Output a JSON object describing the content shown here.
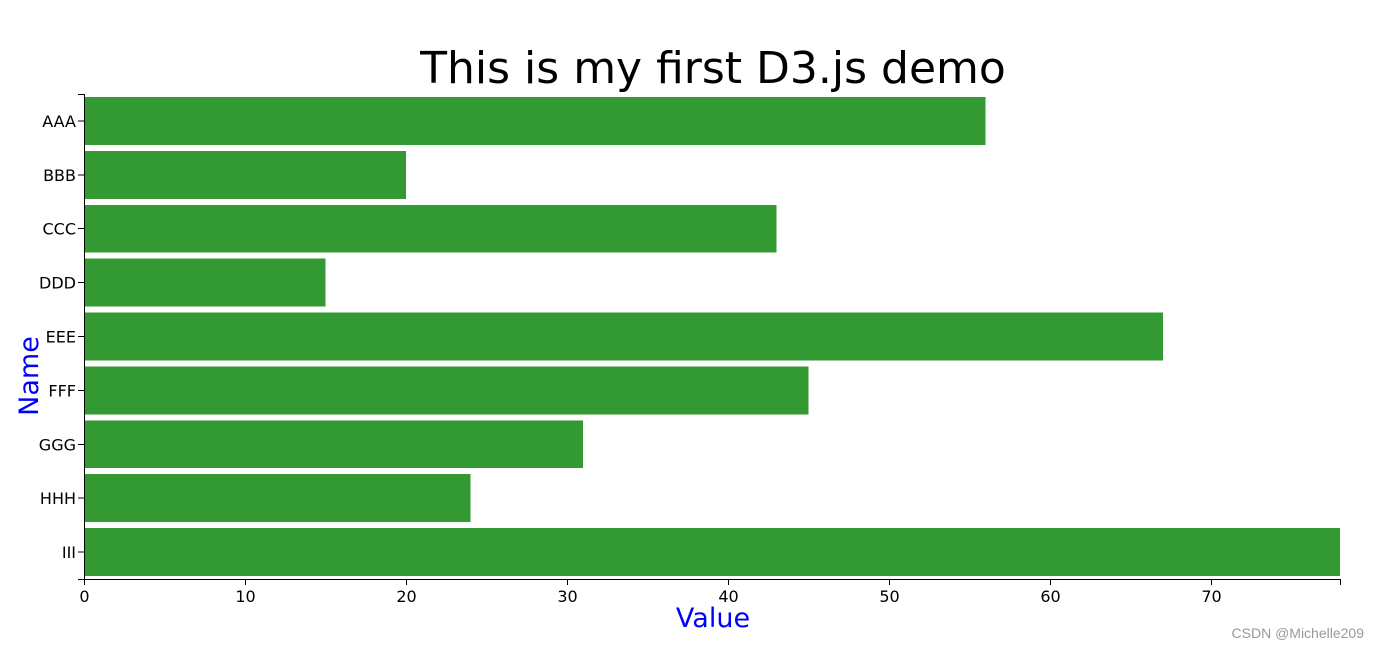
{
  "chart_data": {
    "type": "bar",
    "orientation": "horizontal",
    "title": "This is my first D3.js demo",
    "xlabel": "Value",
    "ylabel": "Name",
    "categories": [
      "AAA",
      "BBB",
      "CCC",
      "DDD",
      "EEE",
      "FFF",
      "GGG",
      "HHH",
      "III"
    ],
    "values": [
      56,
      20,
      43,
      15,
      67,
      45,
      31,
      24,
      78
    ],
    "xlim": [
      0,
      78
    ],
    "xticks": [
      0,
      10,
      20,
      30,
      40,
      50,
      60,
      70
    ],
    "grid": false,
    "legend": "none",
    "colors": {
      "bar": "#339933",
      "axis_label": "#0000ff",
      "text": "#000000"
    }
  },
  "watermark": "CSDN @Michelle209"
}
